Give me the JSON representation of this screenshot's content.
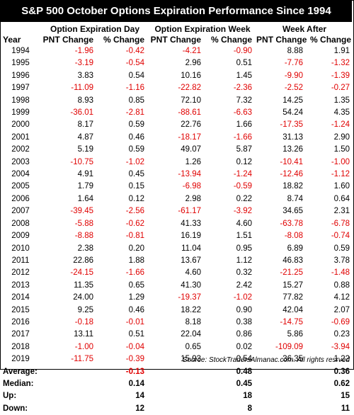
{
  "title": "S&P 500 October Options Expiration Performance Since 1994",
  "group_headers": [
    "Option Expiration Day",
    "Option Expiration Week",
    "Week After"
  ],
  "sub_headers": [
    "Year",
    "PNT Change",
    "% Change",
    "PNT Change",
    "% Change",
    "PNT Change",
    "% Change"
  ],
  "colors": {
    "positive": "#000000",
    "negative": "#e00000",
    "title_bg": "#000000"
  },
  "rows": [
    [
      "1994",
      "-1.96",
      "-0.42",
      "-4.21",
      "-0.90",
      "8.88",
      "1.91"
    ],
    [
      "1995",
      "-3.19",
      "-0.54",
      "2.96",
      "0.51",
      "-7.76",
      "-1.32"
    ],
    [
      "1996",
      "3.83",
      "0.54",
      "10.16",
      "1.45",
      "-9.90",
      "-1.39"
    ],
    [
      "1997",
      "-11.09",
      "-1.16",
      "-22.82",
      "-2.36",
      "-2.52",
      "-0.27"
    ],
    [
      "1998",
      "8.93",
      "0.85",
      "72.10",
      "7.32",
      "14.25",
      "1.35"
    ],
    [
      "1999",
      "-36.01",
      "-2.81",
      "-88.61",
      "-6.63",
      "54.24",
      "4.35"
    ],
    [
      "2000",
      "8.17",
      "0.59",
      "22.76",
      "1.66",
      "-17.35",
      "-1.24"
    ],
    [
      "2001",
      "4.87",
      "0.46",
      "-18.17",
      "-1.66",
      "31.13",
      "2.90"
    ],
    [
      "2002",
      "5.19",
      "0.59",
      "49.07",
      "5.87",
      "13.26",
      "1.50"
    ],
    [
      "2003",
      "-10.75",
      "-1.02",
      "1.26",
      "0.12",
      "-10.41",
      "-1.00"
    ],
    [
      "2004",
      "4.91",
      "0.45",
      "-13.94",
      "-1.24",
      "-12.46",
      "-1.12"
    ],
    [
      "2005",
      "1.79",
      "0.15",
      "-6.98",
      "-0.59",
      "18.82",
      "1.60"
    ],
    [
      "2006",
      "1.64",
      "0.12",
      "2.98",
      "0.22",
      "8.74",
      "0.64"
    ],
    [
      "2007",
      "-39.45",
      "-2.56",
      "-61.17",
      "-3.92",
      "34.65",
      "2.31"
    ],
    [
      "2008",
      "-5.88",
      "-0.62",
      "41.33",
      "4.60",
      "-63.78",
      "-6.78"
    ],
    [
      "2009",
      "-8.88",
      "-0.81",
      "16.19",
      "1.51",
      "-8.08",
      "-0.74"
    ],
    [
      "2010",
      "2.38",
      "0.20",
      "11.04",
      "0.95",
      "6.89",
      "0.59"
    ],
    [
      "2011",
      "22.86",
      "1.88",
      "13.67",
      "1.12",
      "46.83",
      "3.78"
    ],
    [
      "2012",
      "-24.15",
      "-1.66",
      "4.60",
      "0.32",
      "-21.25",
      "-1.48"
    ],
    [
      "2013",
      "11.35",
      "0.65",
      "41.30",
      "2.42",
      "15.27",
      "0.88"
    ],
    [
      "2014",
      "24.00",
      "1.29",
      "-19.37",
      "-1.02",
      "77.82",
      "4.12"
    ],
    [
      "2015",
      "9.25",
      "0.46",
      "18.22",
      "0.90",
      "42.04",
      "2.07"
    ],
    [
      "2016",
      "-0.18",
      "-0.01",
      "8.18",
      "0.38",
      "-14.75",
      "-0.69"
    ],
    [
      "2017",
      "13.11",
      "0.51",
      "22.04",
      "0.86",
      "5.86",
      "0.23"
    ],
    [
      "2018",
      "-1.00",
      "-0.04",
      "0.65",
      "0.02",
      "-109.09",
      "-3.94"
    ],
    [
      "2019",
      "-11.75",
      "-0.39",
      "15.93",
      "0.54",
      "36.35",
      "1.22"
    ]
  ],
  "summary": [
    {
      "label": "Average:",
      "day_pct": "-0.13",
      "week_pct": "0.48",
      "after_pct": "0.36"
    },
    {
      "label": "Median:",
      "day_pct": "0.14",
      "week_pct": "0.45",
      "after_pct": "0.62"
    },
    {
      "label": "Up:",
      "day_pct": "14",
      "week_pct": "18",
      "after_pct": "15"
    },
    {
      "label": "Down:",
      "day_pct": "12",
      "week_pct": "8",
      "after_pct": "11"
    }
  ],
  "source": "Source: StockTradersAlmanac.com. All rights resrved"
}
